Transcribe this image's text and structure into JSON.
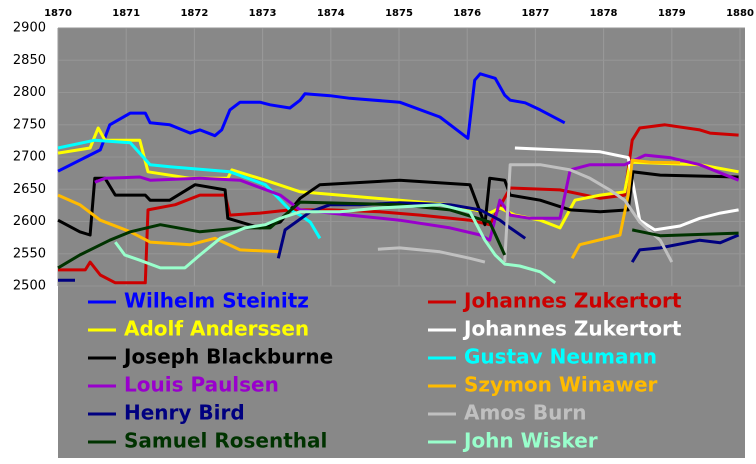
{
  "chart_data": {
    "type": "line",
    "xaxis_position": "top",
    "grid": true,
    "legend_position": "bottom",
    "xlim": [
      1870,
      1880
    ],
    "xticks": [
      1870,
      1871,
      1872,
      1873,
      1874,
      1875,
      1876,
      1877,
      1878,
      1879,
      1880
    ],
    "ylim": [
      2500,
      2900
    ],
    "yticks": [
      2500,
      2550,
      2600,
      2650,
      2700,
      2750,
      2800,
      2850,
      2900
    ],
    "series": [
      {
        "name": "Wilhelm Steinitz",
        "color": "#0000ff",
        "x": [
          1870,
          1870.62,
          1870.76,
          1871.06,
          1871.28,
          1871.35,
          1871.64,
          1871.94,
          1872.08,
          1872.3,
          1872.4,
          1872.52,
          1872.67,
          1872.96,
          1873.11,
          1873.4,
          1873.55,
          1873.62,
          1873.99,
          1874.28,
          1875.01,
          1875.6,
          1876.01,
          1876.11,
          1876.19,
          1876.41,
          1876.55,
          1876.63,
          1876.85,
          1877.07,
          1877.43
        ],
        "values": [
          2678,
          2711,
          2750,
          2768,
          2768,
          2753,
          2750,
          2737,
          2742,
          2733,
          2742,
          2773,
          2785,
          2785,
          2781,
          2776,
          2788,
          2798,
          2795,
          2791,
          2785,
          2762,
          2729,
          2819,
          2829,
          2822,
          2796,
          2788,
          2784,
          2773,
          2753
        ]
      },
      {
        "name": "Johannes Zukertort",
        "color": "#cc0000",
        "x": [
          1870,
          1870.4,
          1870.47,
          1870.62,
          1870.84,
          1871.28,
          1871.32,
          1871.72,
          1872.08,
          1872.45,
          1872.52,
          1872.96,
          1873.4,
          1873.99,
          1874.72,
          1875.31,
          1876.04,
          1876.33,
          1876.63,
          1877.36,
          1877.95,
          1878.31,
          1878.42,
          1878.53,
          1878.9,
          1879.41,
          1879.56,
          1879.98
        ],
        "values": [
          2525,
          2525,
          2537,
          2517,
          2505,
          2505,
          2618,
          2626,
          2641,
          2641,
          2610,
          2613,
          2618,
          2618,
          2615,
          2610,
          2602,
          2595,
          2652,
          2649,
          2636,
          2641,
          2726,
          2745,
          2750,
          2742,
          2737,
          2734
        ]
      },
      {
        "name": "Adolf Anderssen",
        "color": "#ffff00",
        "x": [
          1870,
          1870.47,
          1870.59,
          1870.69,
          1871.2,
          1871.32,
          1871.94,
          1872.49,
          1872.55,
          1873.04,
          1873.55,
          1874.13,
          1875.01,
          1875.75,
          1876.33,
          1876.48,
          1876.7,
          1877.07,
          1877.36,
          1877.58,
          1877.95,
          1878.31,
          1878.39,
          1879.41,
          1879.98
        ],
        "values": [
          2706,
          2714,
          2745,
          2726,
          2726,
          2677,
          2667,
          2667,
          2680,
          2664,
          2646,
          2641,
          2633,
          2626,
          2613,
          2621,
          2610,
          2602,
          2590,
          2633,
          2641,
          2646,
          2692,
          2688,
          2677
        ]
      },
      {
        "name": "Johannes Zukertort",
        "name_unused": null,
        "color": "#ffffff",
        "x": [
          1876.7,
          1877.95,
          1878.36,
          1878.53,
          1878.75,
          1879.12,
          1879.41,
          1879.71,
          1879.98
        ],
        "values": [
          2714,
          2708,
          2699,
          2602,
          2587,
          2593,
          2605,
          2613,
          2618
        ]
      },
      {
        "name": "Joseph Blackburne",
        "color": "#000000",
        "x": [
          1870,
          1870.32,
          1870.47,
          1870.54,
          1870.69,
          1870.84,
          1871.28,
          1871.35,
          1871.64,
          1872.01,
          1872.45,
          1872.49,
          1872.96,
          1873.26,
          1873.55,
          1873.84,
          1875.01,
          1876.04,
          1876.26,
          1876.33,
          1876.55,
          1876.63,
          1877.07,
          1877.51,
          1877.95,
          1878.36,
          1878.43,
          1878.83,
          1879.98
        ],
        "values": [
          2602,
          2584,
          2579,
          2667,
          2667,
          2641,
          2641,
          2633,
          2633,
          2657,
          2649,
          2605,
          2590,
          2599,
          2636,
          2657,
          2664,
          2657,
          2595,
          2667,
          2664,
          2641,
          2633,
          2618,
          2615,
          2618,
          2677,
          2672,
          2669
        ]
      },
      {
        "name": "Gustav Neumann",
        "color": "#00ffff",
        "x": [
          1870,
          1870.54,
          1871.06,
          1871.35,
          1871.64,
          1872.52,
          1873.04,
          1873.4,
          1873.55,
          1873.7,
          1873.84
        ],
        "values": [
          2714,
          2726,
          2722,
          2688,
          2685,
          2677,
          2657,
          2618,
          2610,
          2599,
          2574
        ]
      },
      {
        "name": "Louis Paulsen",
        "color": "#9900cc",
        "x": [
          1870.54,
          1870.69,
          1871.2,
          1871.35,
          1872.08,
          1872.67,
          1873.26,
          1873.55,
          1874.28,
          1875.01,
          1875.75,
          1876.19,
          1876.33,
          1876.48,
          1876.63,
          1876.92,
          1877.36,
          1877.51,
          1877.8,
          1878.31,
          1878.61,
          1878.97,
          1879.41,
          1879.98
        ],
        "values": [
          2661,
          2667,
          2669,
          2664,
          2667,
          2664,
          2641,
          2618,
          2610,
          2602,
          2590,
          2579,
          2571,
          2633,
          2610,
          2605,
          2605,
          2680,
          2688,
          2688,
          2703,
          2699,
          2688,
          2664
        ]
      },
      {
        "name": "Szymon Winawer",
        "color": "#ffbb00",
        "x": [
          1870,
          1870.32,
          1870.62,
          1871.06,
          1871.35,
          1871.94,
          1872.3,
          1872.67,
          1873.26,
          1873.3,
          1877.54,
          1877.65,
          1878.24,
          1878.36,
          1878.42,
          1878.68,
          1879.12
        ],
        "values": [
          2641,
          2626,
          2602,
          2584,
          2568,
          2564,
          2574,
          2556,
          2553,
          null,
          2543,
          2564,
          2579,
          2641,
          2695,
          2692,
          2691
        ]
      },
      {
        "name": "Henry Bird",
        "color": "#000080",
        "x": [
          1870,
          1870.25,
          1870.3,
          1873.23,
          1873.33,
          1873.7,
          1873.99,
          1874.43,
          1875.01,
          1875.75,
          1876.19,
          1876.48,
          1876.63,
          1876.85,
          1877,
          1878.42,
          1878.53,
          1878.83,
          1879.41,
          1879.71,
          1879.98
        ],
        "values": [
          2509,
          2509,
          null,
          2543,
          2587,
          2615,
          2626,
          2626,
          2629,
          2626,
          2618,
          2602,
          2590,
          2574,
          null,
          2537,
          2556,
          2559,
          2571,
          2567,
          2579
        ]
      },
      {
        "name": "Amos Burn",
        "color": "#c0c0c0",
        "x": [
          1874.69,
          1875.01,
          1875.6,
          1876.04,
          1876.26,
          1876.4,
          1876.55,
          1876.63,
          1877.07,
          1877.51,
          1877.8,
          1878.09,
          1878.31,
          1878.53,
          1878.83,
          1879
        ],
        "values": [
          2557,
          2559,
          2553,
          2543,
          2537,
          null,
          2537,
          2688,
          2688,
          2680,
          2667,
          2649,
          2633,
          2599,
          2571,
          2537
        ]
      },
      {
        "name": "Samuel Rosenthal",
        "color": "#003300",
        "x": [
          1870,
          1870.32,
          1870.76,
          1871.06,
          1871.5,
          1872.08,
          1872.67,
          1873.11,
          1873.55,
          1875.01,
          1875.75,
          1876.33,
          1876.55,
          1877,
          1878.42,
          1878.83,
          1879.98
        ],
        "values": [
          2528,
          2548,
          2571,
          2584,
          2595,
          2584,
          2590,
          2590,
          2630,
          2626,
          2618,
          2599,
          2548,
          null,
          2587,
          2578,
          2582
        ]
      },
      {
        "name": "John Wisker",
        "color": "#99ffcc",
        "x": [
          1870.84,
          1870.98,
          1871.2,
          1871.5,
          1871.86,
          1872.08,
          1872.38,
          1872.74,
          1873.04,
          1873.26,
          1873.55,
          1874.13,
          1874.72,
          1875.6,
          1876.04,
          1876.26,
          1876.41,
          1876.55,
          1876.77,
          1877.07,
          1877.29
        ],
        "values": [
          2568,
          2548,
          2540,
          2528,
          2528,
          2548,
          2574,
          2590,
          2595,
          2605,
          2615,
          2615,
          2621,
          2626,
          2615,
          2571,
          2548,
          2534,
          2531,
          2522,
          2505
        ]
      }
    ]
  }
}
